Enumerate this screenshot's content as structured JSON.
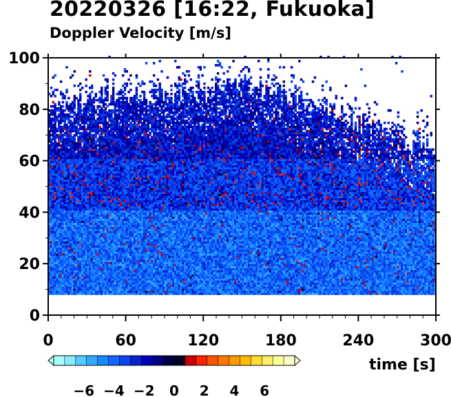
{
  "title": "20220326 [16:22, Fukuoka]",
  "subtitle": "Doppler Velocity [m/s]",
  "chart_data": {
    "type": "heatmap",
    "title": "20220326 [16:22, Fukuoka]",
    "subtitle": "Doppler Velocity [m/s]",
    "xlabel": "time [s]",
    "ylabel": "",
    "xlim": [
      0,
      300
    ],
    "ylim": [
      0,
      100
    ],
    "x_ticks": [
      0,
      60,
      120,
      180,
      240,
      300
    ],
    "y_ticks": [
      0,
      20,
      40,
      60,
      80,
      100
    ],
    "data_bottom": 8,
    "echo_top_profile": {
      "x": [
        0,
        30,
        60,
        90,
        120,
        150,
        180,
        210,
        240,
        270,
        300
      ],
      "top": [
        78,
        82,
        85,
        86,
        87,
        88,
        85,
        80,
        74,
        68,
        62
      ]
    },
    "dominant_velocity": "negative (blue, -1 to -5 m/s)",
    "positive_patches": "scattered red/orange (+0.5 to +2 m/s) mainly at 45-70 m",
    "colorbar": {
      "vmin": -8,
      "vmax": 8,
      "tick_labels": [
        "−6",
        "−4",
        "−2",
        "0",
        "2",
        "4",
        "6"
      ],
      "tick_values": [
        -6,
        -4,
        -2,
        0,
        2,
        4,
        6
      ],
      "colors": [
        "#aaffff",
        "#88eeff",
        "#55ccff",
        "#33aaff",
        "#1a88ff",
        "#1166ff",
        "#0a44ee",
        "#0522cc",
        "#0000bb",
        "#000088",
        "#000044",
        "#000022",
        "#cc0000",
        "#ff2200",
        "#ff5500",
        "#ff7700",
        "#ff9900",
        "#ffbb00",
        "#ffdd33",
        "#ffee66",
        "#ffff99",
        "#ffffcc"
      ]
    }
  }
}
